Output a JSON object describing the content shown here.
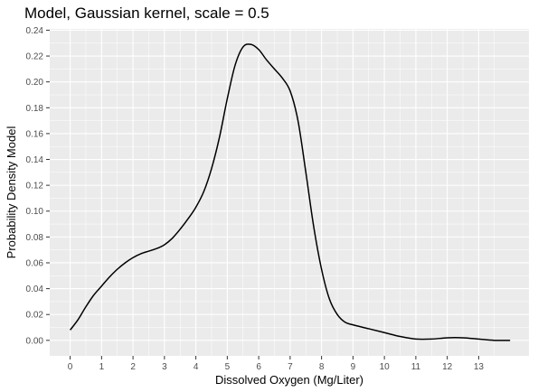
{
  "chart_data": {
    "type": "line",
    "title": "Model, Gaussian kernel, scale = 0.5",
    "xlabel": "Dissolved Oxygen (Mg/Liter)",
    "ylabel": "Probability Density Model",
    "xlim": [
      -0.65,
      14.6
    ],
    "ylim": [
      -0.012,
      0.241
    ],
    "x_ticks": [
      0,
      1,
      2,
      3,
      4,
      5,
      6,
      7,
      8,
      9,
      10,
      11,
      12,
      13
    ],
    "x_tick_labels": [
      "0",
      "1",
      "2",
      "3",
      "4",
      "5",
      "6",
      "7",
      "8",
      "9",
      "10",
      "11",
      "12",
      "13"
    ],
    "y_ticks": [
      0,
      0.02,
      0.04,
      0.06,
      0.08,
      0.1,
      0.12,
      0.14,
      0.16,
      0.18,
      0.2,
      0.22,
      0.24
    ],
    "y_tick_labels": [
      "0.00",
      "0.02",
      "0.04",
      "0.06",
      "0.08",
      "0.10",
      "0.12",
      "0.14",
      "0.16",
      "0.18",
      "0.20",
      "0.22",
      "0.24"
    ],
    "grid": true,
    "background_color": "#ebebeb",
    "grid_color": "#ffffff",
    "line_color": "#000000",
    "series": [
      {
        "x": [
          0.0,
          0.25,
          0.5,
          0.75,
          1.0,
          1.25,
          1.5,
          1.75,
          2.0,
          2.25,
          2.5,
          2.75,
          3.0,
          3.25,
          3.5,
          3.75,
          4.0,
          4.25,
          4.5,
          4.75,
          5.0,
          5.25,
          5.5,
          5.75,
          6.0,
          6.25,
          6.5,
          6.75,
          7.0,
          7.25,
          7.5,
          7.75,
          8.0,
          8.25,
          8.5,
          8.75,
          9.0,
          9.5,
          10.0,
          10.5,
          11.0,
          11.5,
          12.0,
          12.5,
          13.0,
          13.5,
          14.0
        ],
        "y": [
          0.008,
          0.016,
          0.026,
          0.035,
          0.042,
          0.049,
          0.055,
          0.06,
          0.064,
          0.067,
          0.069,
          0.071,
          0.074,
          0.079,
          0.086,
          0.094,
          0.103,
          0.115,
          0.133,
          0.157,
          0.187,
          0.213,
          0.227,
          0.229,
          0.225,
          0.217,
          0.21,
          0.203,
          0.193,
          0.17,
          0.13,
          0.088,
          0.055,
          0.032,
          0.02,
          0.014,
          0.012,
          0.009,
          0.006,
          0.003,
          0.001,
          0.001,
          0.002,
          0.002,
          0.001,
          0.0,
          0.0
        ]
      }
    ]
  }
}
